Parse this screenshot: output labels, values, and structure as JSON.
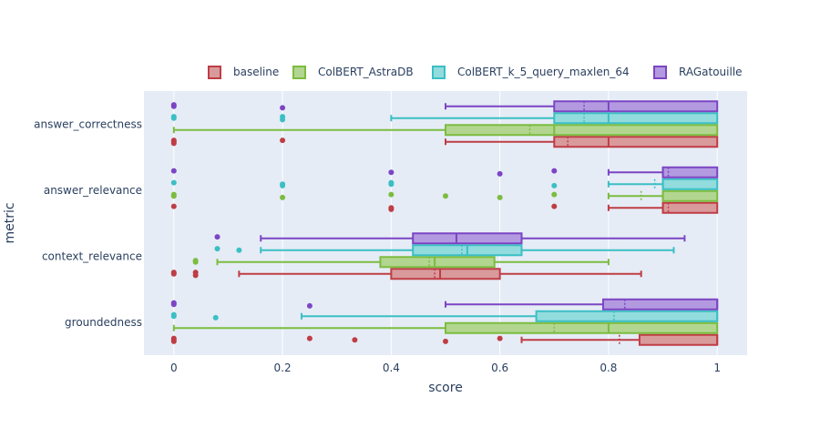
{
  "chart_data": {
    "type": "box",
    "orientation": "horizontal",
    "xlabel": "score",
    "ylabel": "metric",
    "xlim": [
      -0.055,
      1.055
    ],
    "x_ticks": [
      0,
      0.2,
      0.4,
      0.6,
      0.8,
      1
    ],
    "x_tick_labels": [
      "0",
      "0.2",
      "0.4",
      "0.6",
      "0.8",
      "1"
    ],
    "categories": [
      "answer_correctness",
      "answer_relevance",
      "context_relevance",
      "groundedness"
    ],
    "legend_position": "top",
    "grid": true,
    "background": "#e5ecf6",
    "series": [
      {
        "name": "baseline",
        "fill": "#d99a9c",
        "stroke": "#bf3d44",
        "boxes": [
          {
            "category": "answer_correctness",
            "lower_whisker": 0.5,
            "q1": 0.7,
            "median": 0.8,
            "mean": 0.725,
            "q3": 1.0,
            "upper_whisker": 1.0,
            "outliers": [
              0,
              0,
              0,
              0.2
            ]
          },
          {
            "category": "answer_relevance",
            "lower_whisker": 0.8,
            "q1": 0.9,
            "median": 0.9,
            "mean": 0.91,
            "q3": 1.0,
            "upper_whisker": 1.0,
            "outliers": [
              0,
              0.4,
              0.4,
              0.7
            ]
          },
          {
            "category": "context_relevance",
            "lower_whisker": 0.12,
            "q1": 0.4,
            "median": 0.49,
            "mean": 0.48,
            "q3": 0.6,
            "upper_whisker": 0.86,
            "outliers": [
              0,
              0,
              0.04,
              0.04
            ]
          },
          {
            "category": "groundedness",
            "lower_whisker": 0.64,
            "q1": 0.857,
            "median": 1.0,
            "mean": 0.82,
            "q3": 1.0,
            "upper_whisker": 1.0,
            "outliers": [
              0,
              0,
              0,
              0.25,
              0.333,
              0.5,
              0.6
            ]
          }
        ]
      },
      {
        "name": "ColBERT_AstraDB",
        "fill": "#b2d690",
        "stroke": "#7cbc3f",
        "boxes": [
          {
            "category": "answer_correctness",
            "lower_whisker": 0,
            "q1": 0.5,
            "median": 0.7,
            "mean": 0.655,
            "q3": 1.0,
            "upper_whisker": 1.0,
            "outliers": []
          },
          {
            "category": "answer_relevance",
            "lower_whisker": 0.8,
            "q1": 0.9,
            "median": 0.9,
            "mean": 0.86,
            "q3": 1.0,
            "upper_whisker": 1.0,
            "outliers": [
              0,
              0,
              0.2,
              0.4,
              0.5,
              0.6,
              0.7
            ]
          },
          {
            "category": "context_relevance",
            "lower_whisker": 0.08,
            "q1": 0.38,
            "median": 0.48,
            "mean": 0.47,
            "q3": 0.59,
            "upper_whisker": 0.8,
            "outliers": [
              0.04,
              0.04
            ]
          },
          {
            "category": "groundedness",
            "lower_whisker": 0,
            "q1": 0.5,
            "median": 0.8,
            "mean": 0.7,
            "q3": 1.0,
            "upper_whisker": 1.0,
            "outliers": []
          }
        ]
      },
      {
        "name": "ColBERT_k_5_query_maxlen_64",
        "fill": "#92dcdd",
        "stroke": "#3bbfc4",
        "boxes": [
          {
            "category": "answer_correctness",
            "lower_whisker": 0.4,
            "q1": 0.7,
            "median": 0.8,
            "mean": 0.755,
            "q3": 1.0,
            "upper_whisker": 1.0,
            "outliers": [
              0,
              0,
              0.2,
              0.2
            ]
          },
          {
            "category": "answer_relevance",
            "lower_whisker": 0.8,
            "q1": 0.9,
            "median": 0.9,
            "mean": 0.885,
            "q3": 1.0,
            "upper_whisker": 1.0,
            "outliers": [
              0,
              0.2,
              0.2,
              0.4,
              0.4,
              0.7
            ]
          },
          {
            "category": "context_relevance",
            "lower_whisker": 0.16,
            "q1": 0.44,
            "median": 0.54,
            "mean": 0.53,
            "q3": 0.64,
            "upper_whisker": 0.92,
            "outliers": [
              0.08,
              0.12
            ]
          },
          {
            "category": "groundedness",
            "lower_whisker": 0.235,
            "q1": 0.667,
            "median": 1.0,
            "mean": 0.81,
            "q3": 1.0,
            "upper_whisker": 1.0,
            "outliers": [
              0,
              0,
              0.077
            ]
          }
        ]
      },
      {
        "name": "RAGatouille",
        "fill": "#b39ae0",
        "stroke": "#7c45c4",
        "boxes": [
          {
            "category": "answer_correctness",
            "lower_whisker": 0.5,
            "q1": 0.7,
            "median": 0.8,
            "mean": 0.755,
            "q3": 1.0,
            "upper_whisker": 1.0,
            "outliers": [
              0,
              0,
              0.2
            ]
          },
          {
            "category": "answer_relevance",
            "lower_whisker": 0.8,
            "q1": 0.9,
            "median": 0.9,
            "mean": 0.91,
            "q3": 1.0,
            "upper_whisker": 1.0,
            "outliers": [
              0,
              0.4,
              0.6,
              0.7
            ]
          },
          {
            "category": "context_relevance",
            "lower_whisker": 0.16,
            "q1": 0.44,
            "median": 0.52,
            "mean": 0.52,
            "q3": 0.64,
            "upper_whisker": 0.94,
            "outliers": [
              0.08
            ]
          },
          {
            "category": "groundedness",
            "lower_whisker": 0.5,
            "q1": 0.79,
            "median": 1.0,
            "mean": 0.83,
            "q3": 1.0,
            "upper_whisker": 1.0,
            "outliers": [
              0,
              0,
              0.25
            ]
          }
        ]
      }
    ]
  }
}
